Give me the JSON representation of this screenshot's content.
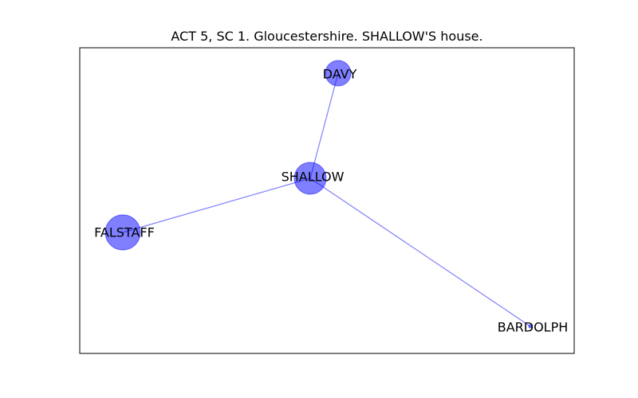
{
  "title": "ACT 5, SC 1. Gloucestershire. SHALLOW'S house.",
  "colors": {
    "node": "#0000ff",
    "edge": "#0000ff",
    "frame": "#000000",
    "text": "#000000"
  },
  "nodes": [
    {
      "id": "SHALLOW",
      "label": "SHALLOW"
    },
    {
      "id": "DAVY",
      "label": "DAVY"
    },
    {
      "id": "FALSTAFF",
      "label": "FALSTAFF"
    },
    {
      "id": "BARDOLPH",
      "label": "BARDOLPH"
    }
  ],
  "edges": [
    {
      "source": "SHALLOW",
      "target": "DAVY"
    },
    {
      "source": "SHALLOW",
      "target": "FALSTAFF"
    },
    {
      "source": "SHALLOW",
      "target": "BARDOLPH"
    }
  ]
}
